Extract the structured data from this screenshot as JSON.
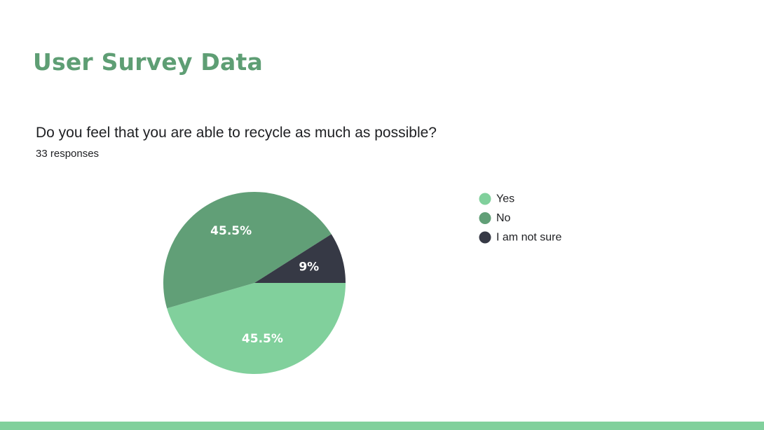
{
  "slide": {
    "title": "User Survey Data"
  },
  "survey": {
    "question": "Do you feel that you are able to recycle as much as possible?",
    "responses_text": "33 responses"
  },
  "colors": {
    "title": "#5e9e74",
    "yes": "#81d09c",
    "no": "#619f77",
    "not_sure": "#363945",
    "footer_bar": "#81d09c"
  },
  "chart_data": {
    "type": "pie",
    "title": "Do you feel that you are able to recycle as much as possible?",
    "subtitle": "33 responses",
    "legend_position": "right",
    "slices": [
      {
        "label": "Yes",
        "value": 45.5,
        "display": "45.5%",
        "color": "#81d09c"
      },
      {
        "label": "No",
        "value": 45.5,
        "display": "45.5%",
        "color": "#619f77"
      },
      {
        "label": "I am not sure",
        "value": 9,
        "display": "9%",
        "color": "#363945"
      }
    ]
  }
}
